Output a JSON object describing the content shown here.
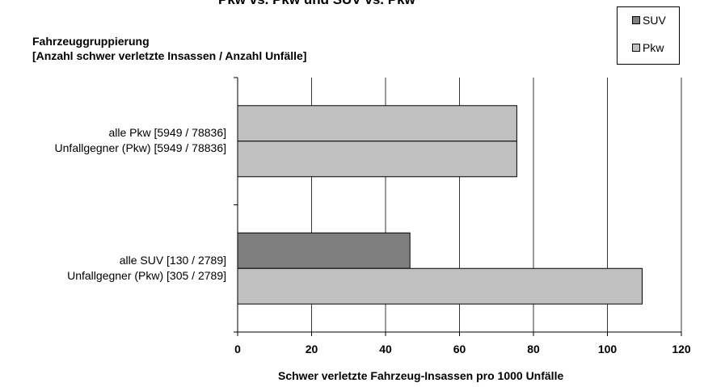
{
  "chart_data": {
    "type": "bar",
    "orientation": "horizontal",
    "top_title": "Pkw vs. Pkw und SUV vs. Pkw",
    "group_title_lines": [
      "Fahrzeuggruppierung",
      "[Anzahl schwer verletzte Insassen / Anzahl Unfälle]"
    ],
    "xlabel": "Schwer verletzte Fahrzeug-Insassen  pro 1000 Unfälle",
    "xlim": [
      0,
      120
    ],
    "xticks": [
      "0",
      "20",
      "40",
      "60",
      "80",
      "100",
      "120"
    ],
    "grid": "vertical",
    "legend_position": "top-right",
    "legend": [
      {
        "name": "SUV",
        "color": "#7f7f7f"
      },
      {
        "name": "Pkw",
        "color": "#c0c0c0"
      }
    ],
    "groups": [
      {
        "label_lines": [
          "alle Pkw [5949 / 78836]",
          "Unfallgegner (Pkw) [5949 / 78836]"
        ],
        "bars": [
          {
            "series": "Pkw",
            "value": 75.5
          },
          {
            "series": "Pkw",
            "value": 75.5
          }
        ]
      },
      {
        "label_lines": [
          "alle SUV [130 / 2789]",
          "Unfallgegner (Pkw) [305 / 2789]"
        ],
        "bars": [
          {
            "series": "SUV",
            "value": 46.6
          },
          {
            "series": "Pkw",
            "value": 109.4
          }
        ]
      }
    ]
  }
}
